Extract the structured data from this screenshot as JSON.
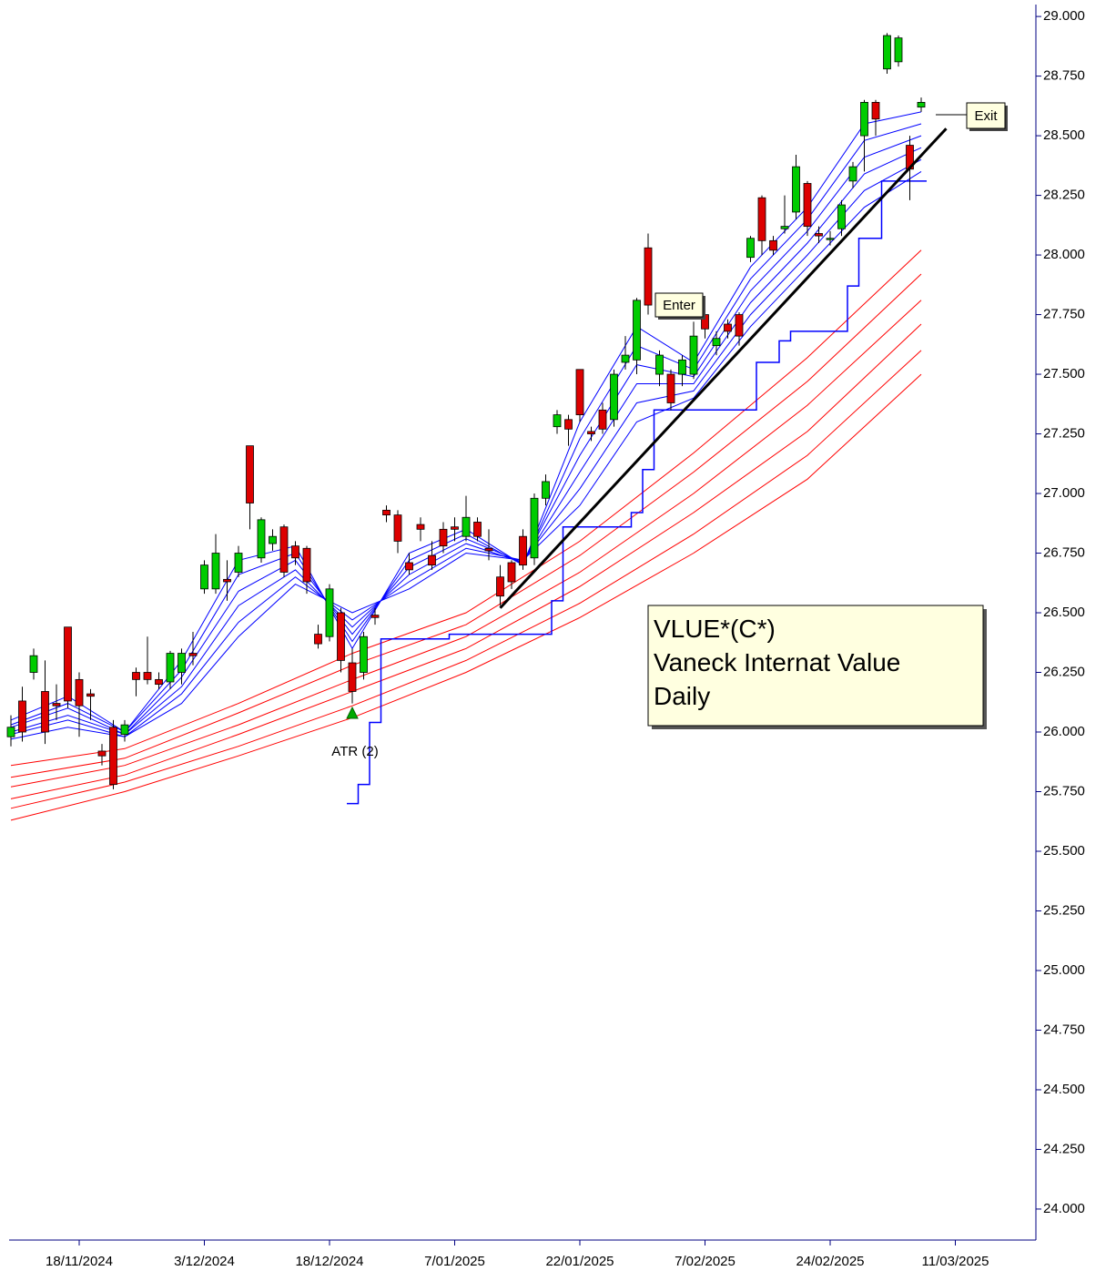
{
  "chart_data": {
    "type": "candlestick",
    "title_lines": [
      "VLUE*(C*)",
      "Vaneck Internat Value",
      "Daily"
    ],
    "annotations": [
      "Enter",
      "Exit",
      "ATR (2)"
    ],
    "categories": [
      null,
      null,
      null,
      null,
      null,
      null,
      "18/11/2024",
      null,
      null,
      null,
      null,
      null,
      null,
      null,
      null,
      null,
      null,
      "3/12/2024",
      null,
      null,
      null,
      null,
      null,
      null,
      null,
      null,
      null,
      null,
      "18/12/2024",
      null,
      null,
      null,
      null,
      null,
      null,
      null,
      null,
      null,
      null,
      "7/01/2025",
      null,
      null,
      null,
      null,
      null,
      null,
      null,
      null,
      null,
      null,
      "22/01/2025",
      null,
      null,
      null,
      null,
      null,
      null,
      null,
      null,
      null,
      null,
      "7/02/2025",
      null,
      null,
      null,
      null,
      null,
      null,
      null,
      null,
      null,
      null,
      "24/02/2025",
      null,
      null,
      null,
      null,
      null,
      null,
      null,
      null,
      null,
      null,
      "11/03/2025"
    ],
    "open": [
      25.98,
      26.13,
      26.25,
      26.17,
      26.12,
      26.44,
      26.22,
      26.16,
      25.92,
      26.02,
      25.99,
      26.25,
      26.25,
      26.22,
      26.21,
      26.25,
      26.33,
      26.6,
      26.6,
      26.64,
      26.67,
      27.2,
      26.73,
      26.79,
      26.86,
      26.78,
      26.77,
      26.41,
      26.4,
      26.5,
      26.29,
      26.25,
      26.49,
      26.93,
      26.91,
      26.71,
      26.87,
      26.74,
      26.85,
      26.86,
      26.82,
      26.88,
      26.77,
      26.65,
      26.71,
      26.82,
      26.73,
      26.98,
      27.28,
      27.31,
      27.52,
      27.26,
      27.35,
      27.31,
      27.55,
      27.56,
      28.03,
      27.5,
      27.5,
      27.5,
      27.5,
      27.75,
      27.62,
      27.71,
      27.75,
      27.99,
      28.24,
      28.06,
      28.11,
      28.18,
      28.3,
      28.09,
      28.07,
      28.11,
      28.31,
      28.5,
      28.64,
      28.78,
      28.81,
      28.46,
      28.62,
      null,
      null,
      null
    ],
    "high": [
      26.07,
      26.19,
      26.35,
      26.3,
      26.2,
      26.44,
      26.25,
      26.18,
      25.95,
      26.05,
      26.05,
      26.27,
      26.4,
      26.25,
      26.34,
      26.35,
      26.42,
      26.72,
      26.83,
      26.72,
      26.78,
      27.2,
      26.9,
      26.85,
      26.87,
      26.8,
      26.78,
      26.45,
      26.62,
      26.52,
      26.35,
      26.42,
      26.52,
      26.95,
      26.93,
      26.75,
      26.9,
      26.8,
      26.88,
      26.9,
      26.99,
      26.9,
      26.85,
      26.7,
      26.72,
      26.85,
      27.0,
      27.08,
      27.35,
      27.33,
      27.52,
      27.28,
      27.38,
      27.52,
      27.66,
      27.82,
      28.09,
      27.6,
      27.52,
      27.58,
      27.72,
      27.78,
      27.68,
      27.73,
      27.76,
      28.08,
      28.25,
      28.08,
      28.25,
      28.42,
      28.31,
      28.12,
      28.1,
      28.23,
      28.39,
      28.65,
      28.65,
      28.93,
      28.92,
      28.5,
      28.66,
      null,
      null,
      null
    ],
    "low": [
      25.94,
      25.96,
      26.22,
      25.95,
      26.05,
      26.1,
      25.98,
      26.05,
      25.86,
      25.76,
      25.96,
      26.15,
      26.2,
      26.18,
      26.18,
      26.2,
      26.28,
      26.58,
      26.58,
      26.55,
      26.65,
      26.85,
      26.71,
      26.76,
      26.65,
      26.7,
      26.58,
      26.35,
      26.38,
      26.25,
      26.12,
      26.22,
      26.45,
      26.88,
      26.75,
      26.66,
      26.8,
      26.68,
      26.75,
      26.8,
      26.8,
      26.8,
      26.72,
      26.53,
      26.6,
      26.68,
      26.7,
      26.95,
      27.25,
      27.2,
      27.3,
      27.22,
      27.25,
      27.28,
      27.52,
      27.5,
      27.75,
      27.45,
      27.35,
      27.45,
      27.48,
      27.65,
      27.58,
      27.65,
      27.62,
      27.97,
      28.0,
      28.0,
      28.09,
      28.15,
      28.08,
      28.05,
      28.04,
      28.08,
      28.28,
      28.35,
      28.5,
      28.76,
      28.79,
      28.23,
      28.6,
      null,
      null,
      null
    ],
    "close": [
      26.02,
      26.0,
      26.32,
      26.0,
      26.11,
      26.13,
      26.11,
      26.15,
      25.9,
      25.78,
      26.03,
      26.22,
      26.22,
      26.2,
      26.33,
      26.33,
      26.32,
      26.7,
      26.75,
      26.63,
      26.75,
      26.96,
      26.89,
      26.82,
      26.67,
      26.73,
      26.63,
      26.37,
      26.6,
      26.3,
      26.17,
      26.4,
      26.48,
      26.91,
      26.8,
      26.68,
      26.85,
      26.7,
      26.78,
      26.85,
      26.9,
      26.82,
      26.76,
      26.57,
      26.63,
      26.7,
      26.98,
      27.05,
      27.33,
      27.27,
      27.33,
      27.25,
      27.27,
      27.5,
      27.58,
      27.81,
      27.79,
      27.58,
      27.38,
      27.56,
      27.66,
      27.69,
      27.65,
      27.68,
      27.66,
      28.07,
      28.06,
      28.02,
      28.12,
      28.37,
      28.12,
      28.08,
      28.07,
      28.21,
      28.37,
      28.64,
      28.57,
      28.92,
      28.91,
      28.36,
      28.64,
      null,
      null,
      null
    ],
    "up_color": "#00cc00",
    "down_color": "#dd0000",
    "series": [
      {
        "color": "#0000ff",
        "x": [
          0,
          5,
          10,
          15,
          20,
          25,
          30,
          35,
          40,
          45,
          50,
          55,
          60,
          65,
          70,
          75,
          80
        ],
        "values": [
          26.05,
          26.15,
          26.0,
          26.3,
          26.72,
          26.78,
          26.35,
          26.75,
          26.85,
          26.7,
          27.3,
          27.7,
          27.55,
          27.95,
          28.2,
          28.55,
          28.6
        ]
      },
      {
        "color": "#0000ff",
        "x": [
          0,
          5,
          10,
          15,
          20,
          25,
          30,
          35,
          40,
          45,
          50,
          55,
          60,
          65,
          70,
          75,
          80
        ],
        "values": [
          26.03,
          26.12,
          26.0,
          26.26,
          26.66,
          26.75,
          26.38,
          26.72,
          26.83,
          26.7,
          27.23,
          27.62,
          27.52,
          27.9,
          28.15,
          28.48,
          28.55
        ]
      },
      {
        "color": "#0000ff",
        "x": [
          0,
          5,
          10,
          15,
          20,
          25,
          30,
          35,
          40,
          45,
          50,
          55,
          60,
          65,
          70,
          75,
          80
        ],
        "values": [
          26.02,
          26.1,
          25.99,
          26.23,
          26.59,
          26.72,
          26.41,
          26.69,
          26.81,
          26.71,
          27.16,
          27.54,
          27.49,
          27.85,
          28.1,
          28.41,
          28.5
        ]
      },
      {
        "color": "#0000ff",
        "x": [
          0,
          5,
          10,
          15,
          20,
          25,
          30,
          35,
          40,
          45,
          50,
          55,
          60,
          65,
          70,
          75,
          80
        ],
        "values": [
          26.0,
          26.07,
          25.99,
          26.19,
          26.53,
          26.68,
          26.44,
          26.66,
          26.79,
          26.71,
          27.09,
          27.46,
          27.46,
          27.8,
          28.05,
          28.34,
          28.45
        ]
      },
      {
        "color": "#0000ff",
        "x": [
          0,
          5,
          10,
          15,
          20,
          25,
          30,
          35,
          40,
          45,
          50,
          55,
          60,
          65,
          70,
          75,
          80
        ],
        "values": [
          25.99,
          26.05,
          25.98,
          26.16,
          26.46,
          26.65,
          26.47,
          26.63,
          26.77,
          26.72,
          27.02,
          27.38,
          27.43,
          27.75,
          28.0,
          28.27,
          28.4
        ]
      },
      {
        "color": "#0000ff",
        "x": [
          0,
          5,
          10,
          15,
          20,
          25,
          30,
          35,
          40,
          45,
          50,
          55,
          60,
          65,
          70,
          75,
          80
        ],
        "values": [
          25.97,
          26.02,
          25.98,
          26.12,
          26.4,
          26.62,
          26.5,
          26.6,
          26.75,
          26.72,
          26.95,
          27.3,
          27.4,
          27.7,
          27.95,
          28.2,
          28.35
        ]
      },
      {
        "color": "#ff0000",
        "x": [
          0,
          10,
          20,
          30,
          40,
          50,
          60,
          70,
          80
        ],
        "values": [
          25.86,
          25.93,
          26.12,
          26.33,
          26.5,
          26.8,
          27.17,
          27.57,
          28.02
        ]
      },
      {
        "color": "#ff0000",
        "x": [
          0,
          10,
          20,
          30,
          40,
          50,
          60,
          70,
          80
        ],
        "values": [
          25.81,
          25.89,
          26.08,
          26.28,
          26.45,
          26.74,
          27.09,
          27.47,
          27.92
        ]
      },
      {
        "color": "#ff0000",
        "x": [
          0,
          10,
          20,
          30,
          40,
          50,
          60,
          70,
          80
        ],
        "values": [
          25.77,
          25.86,
          26.03,
          26.22,
          26.4,
          26.67,
          27.0,
          27.37,
          27.81
        ]
      },
      {
        "color": "#ff0000",
        "x": [
          0,
          10,
          20,
          30,
          40,
          50,
          60,
          70,
          80
        ],
        "values": [
          25.72,
          25.82,
          25.99,
          26.17,
          26.35,
          26.61,
          26.92,
          27.26,
          27.71
        ]
      },
      {
        "color": "#ff0000",
        "x": [
          0,
          10,
          20,
          30,
          40,
          50,
          60,
          70,
          80
        ],
        "values": [
          25.68,
          25.79,
          25.94,
          26.11,
          26.3,
          26.54,
          26.83,
          27.16,
          27.6
        ]
      },
      {
        "color": "#ff0000",
        "x": [
          0,
          10,
          20,
          30,
          40,
          50,
          60,
          70,
          80
        ],
        "values": [
          25.63,
          25.75,
          25.9,
          26.06,
          26.25,
          26.48,
          26.75,
          27.06,
          27.5
        ]
      }
    ],
    "stop": {
      "color": "#0000ff",
      "x": [
        30,
        31,
        32,
        33,
        39,
        48,
        49,
        55,
        56,
        57,
        66,
        68,
        69,
        74,
        75,
        77,
        80
      ],
      "values": [
        25.7,
        25.78,
        26.04,
        26.39,
        26.41,
        26.55,
        26.86,
        26.92,
        27.1,
        27.35,
        27.55,
        27.64,
        27.68,
        27.87,
        28.07,
        28.31,
        28.31
      ]
    },
    "trendline": {
      "color": "#000000",
      "x": [
        43,
        82.2
      ],
      "values": [
        26.52,
        28.53
      ]
    },
    "signal": {
      "color": "#00aa00",
      "x": 30,
      "value": 26.08
    },
    "xlim": [
      -0.96,
      90.08
    ],
    "ylim": [
      23.87,
      29.05
    ],
    "yticks": [
      {
        "value": 29,
        "label": "29.000"
      },
      {
        "value": 28.75,
        "label": "28.750"
      },
      {
        "value": 28.5,
        "label": "28.500"
      },
      {
        "value": 28.25,
        "label": "28.250"
      },
      {
        "value": 28,
        "label": "28.000"
      },
      {
        "value": 27.75,
        "label": "27.750"
      },
      {
        "value": 27.5,
        "label": "27.500"
      },
      {
        "value": 27.25,
        "label": "27.250"
      },
      {
        "value": 27,
        "label": "27.000"
      },
      {
        "value": 26.75,
        "label": "26.750"
      },
      {
        "value": 26.5,
        "label": "26.500"
      },
      {
        "value": 26.25,
        "label": "26.250"
      },
      {
        "value": 26,
        "label": "26.000"
      },
      {
        "value": 25.75,
        "label": "25.750"
      },
      {
        "value": 25.5,
        "label": "25.500"
      },
      {
        "value": 25.25,
        "label": "25.250"
      },
      {
        "value": 25,
        "label": "25.000"
      },
      {
        "value": 24.75,
        "label": "24.750"
      },
      {
        "value": 24.5,
        "label": "24.500"
      },
      {
        "value": 24.25,
        "label": "24.250"
      },
      {
        "value": 24,
        "label": "24.000"
      }
    ]
  }
}
